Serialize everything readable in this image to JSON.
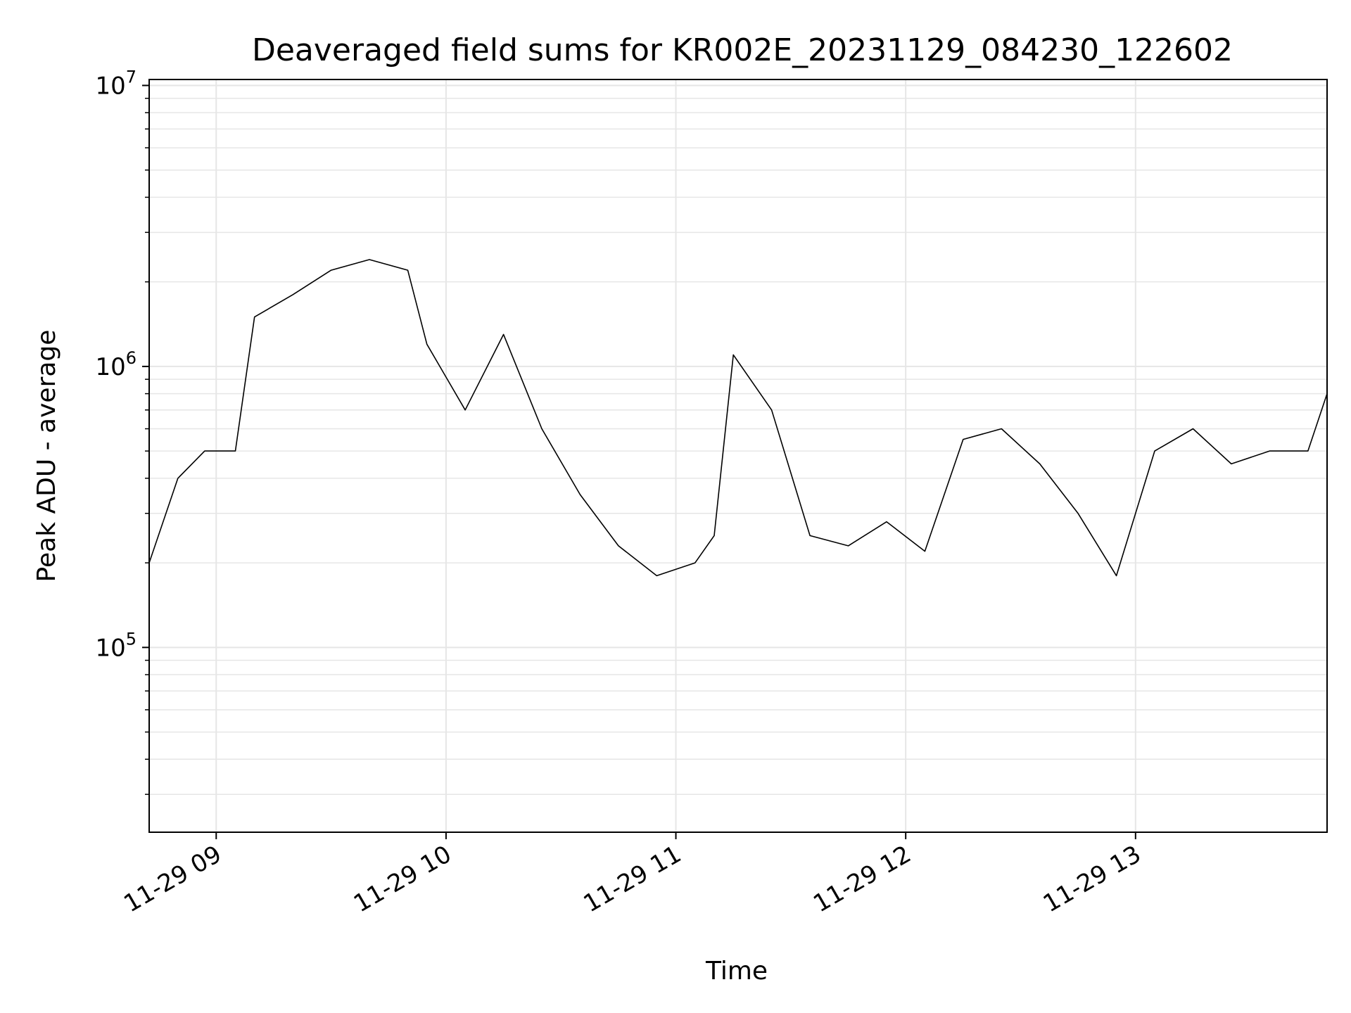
{
  "chart_data": {
    "type": "line",
    "title": "Deaveraged field sums for KR002E_20231129_084230_122602",
    "xlabel": "Time",
    "ylabel": "Peak ADU - average",
    "yscale": "log",
    "ylim": [
      22000,
      10500000
    ],
    "xlim": [
      "2023-11-29 08:42:30",
      "2023-11-29 13:50:00"
    ],
    "grid": true,
    "line_color": "#000000",
    "grid_color": "#e6e6e6",
    "x_ticks": [
      {
        "value": "2023-11-29 09:00",
        "label": "11-29 09"
      },
      {
        "value": "2023-11-29 10:00",
        "label": "11-29 10"
      },
      {
        "value": "2023-11-29 11:00",
        "label": "11-29 11"
      },
      {
        "value": "2023-11-29 12:00",
        "label": "11-29 12"
      },
      {
        "value": "2023-11-29 13:00",
        "label": "11-29 13"
      }
    ],
    "y_ticks": [
      {
        "value": 100000,
        "base": "10",
        "exp": "5"
      },
      {
        "value": 1000000,
        "base": "10",
        "exp": "6"
      },
      {
        "value": 10000000,
        "base": "10",
        "exp": "7"
      }
    ],
    "series": [
      {
        "x": [
          "2023-11-29 08:42:30",
          "2023-11-29 08:50",
          "2023-11-29 08:57",
          "2023-11-29 09:05",
          "2023-11-29 09:10",
          "2023-11-29 09:20",
          "2023-11-29 09:30",
          "2023-11-29 09:40",
          "2023-11-29 09:50",
          "2023-11-29 09:55",
          "2023-11-29 10:05",
          "2023-11-29 10:15",
          "2023-11-29 10:25",
          "2023-11-29 10:35",
          "2023-11-29 10:45",
          "2023-11-29 10:55",
          "2023-11-29 11:05",
          "2023-11-29 11:10",
          "2023-11-29 11:15",
          "2023-11-29 11:25",
          "2023-11-29 11:35",
          "2023-11-29 11:45",
          "2023-11-29 11:55",
          "2023-11-29 12:05",
          "2023-11-29 12:15",
          "2023-11-29 12:25",
          "2023-11-29 12:35",
          "2023-11-29 12:45",
          "2023-11-29 12:55",
          "2023-11-29 13:05",
          "2023-11-29 13:15",
          "2023-11-29 13:25",
          "2023-11-29 13:35",
          "2023-11-29 13:45",
          "2023-11-29 13:50"
        ],
        "y": [
          200000,
          400000,
          500000,
          500000,
          1500000,
          1800000,
          2200000,
          2400000,
          2200000,
          1200000,
          700000,
          1300000,
          600000,
          350000,
          230000,
          180000,
          200000,
          250000,
          1100000,
          700000,
          250000,
          230000,
          280000,
          220000,
          550000,
          600000,
          450000,
          300000,
          180000,
          500000,
          600000,
          450000,
          500000,
          500000,
          800000
        ]
      }
    ]
  }
}
